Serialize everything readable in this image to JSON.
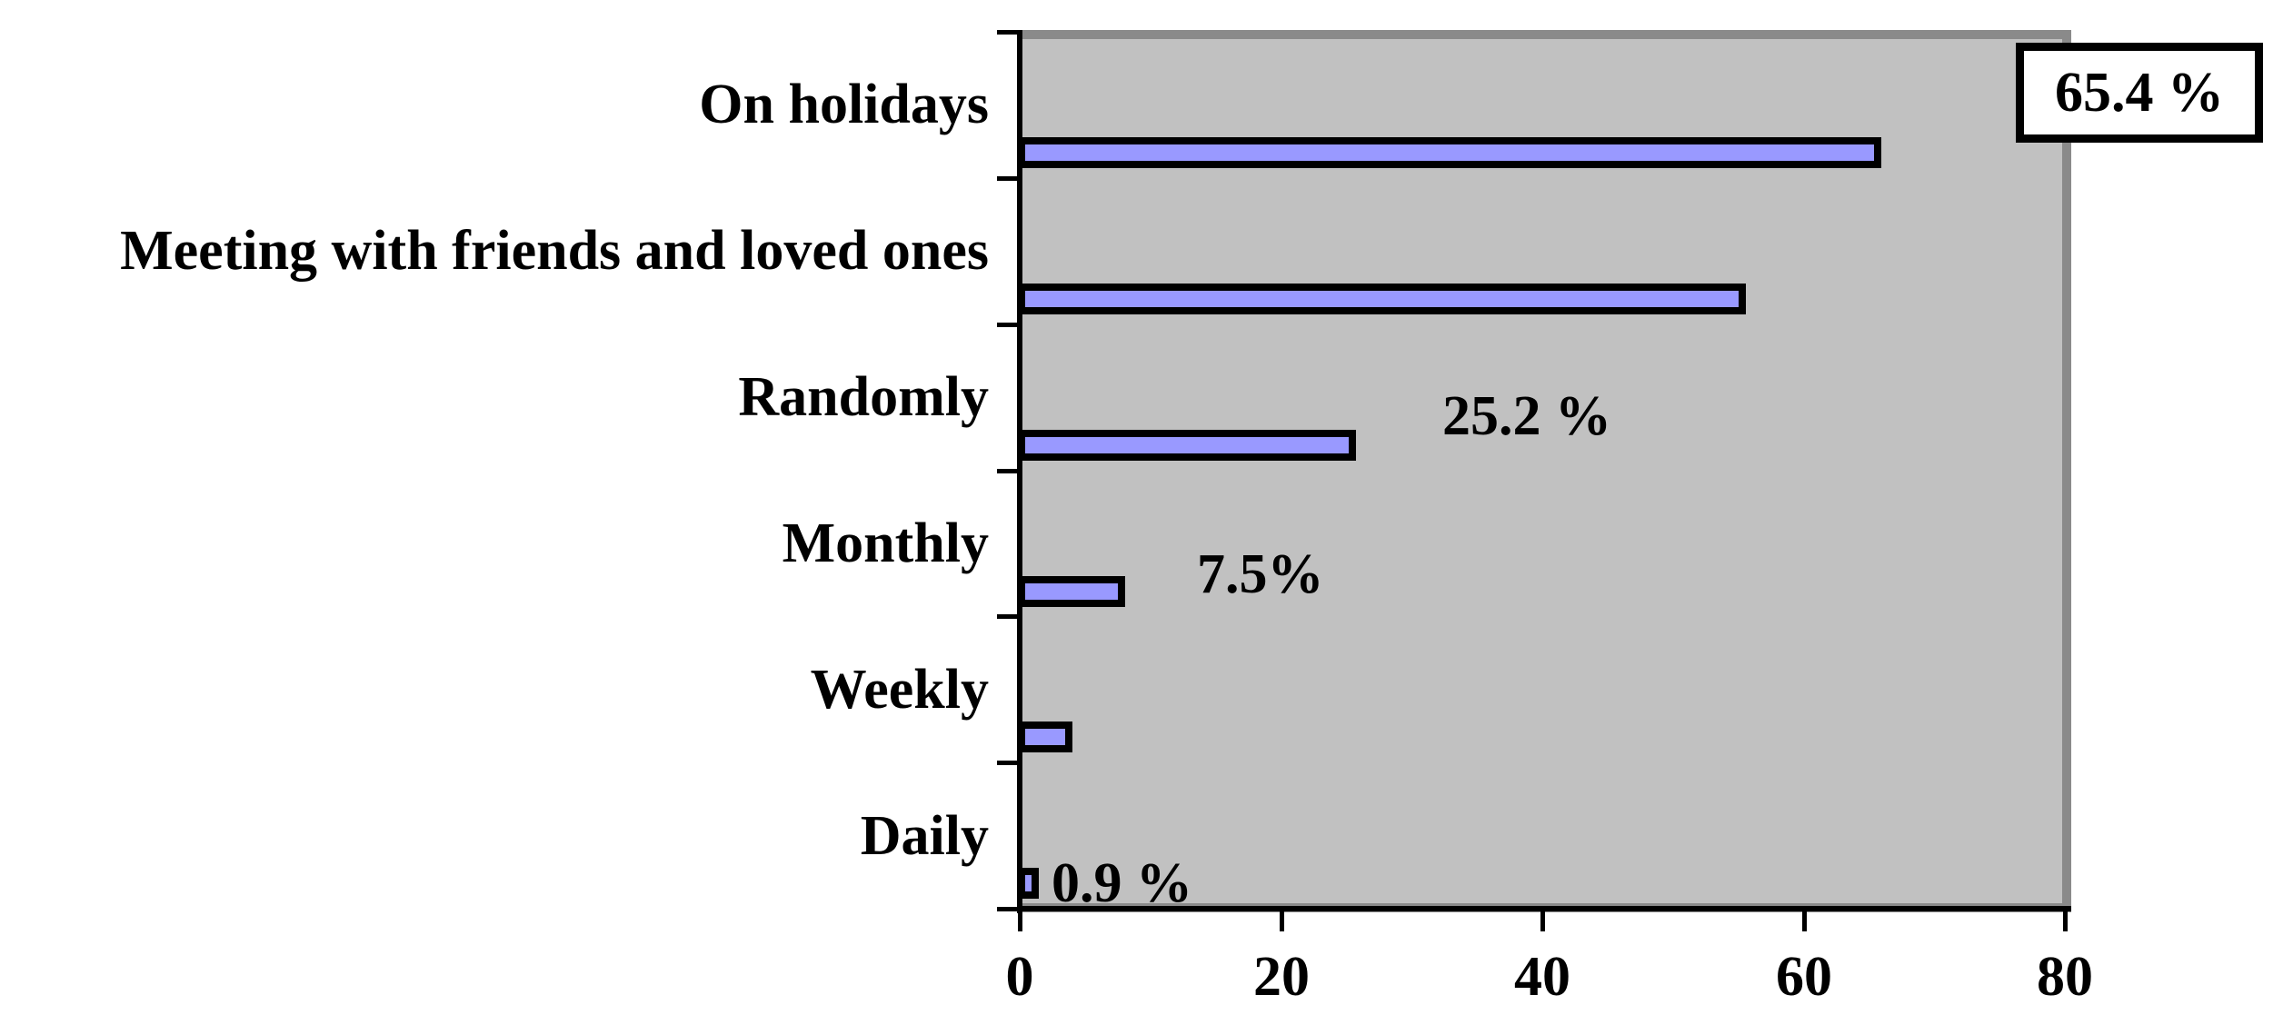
{
  "chart_data": {
    "type": "bar",
    "orientation": "horizontal",
    "title": "",
    "categories": [
      "On holidays",
      "Meeting with friends and loved ones",
      "Randomly",
      "Monthly",
      "Weekly",
      "Daily"
    ],
    "values": [
      65.4,
      55.0,
      25.2,
      7.5,
      3.5,
      0.9
    ],
    "value_unit": "%",
    "xlim": [
      0,
      80
    ],
    "x_ticks": [
      0,
      20,
      40,
      60,
      80
    ],
    "x_tick_labels": [
      "0",
      "20",
      "40",
      "60",
      "80"
    ],
    "grid": false,
    "legend": false,
    "annotations": [
      {
        "category_index": 0,
        "text": "65.4 %",
        "boxed": true
      },
      {
        "category_index": 2,
        "text": "25.2 %",
        "boxed": false
      },
      {
        "category_index": 3,
        "text": "7.5%",
        "boxed": false
      },
      {
        "category_index": 5,
        "text": "0.9 %",
        "boxed": false
      }
    ],
    "colors": {
      "bar_fill": "#9999ff",
      "bar_border": "#000000",
      "plot_background": "#c1c1c1",
      "plot_border": "#8a8a8a",
      "axis": "#000000",
      "text": "#000000",
      "page_background": "#ffffff",
      "annotation_box_background": "#ffffff",
      "annotation_box_border": "#000000"
    }
  }
}
